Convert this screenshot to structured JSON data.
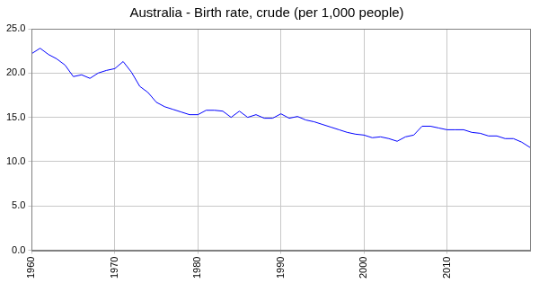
{
  "chart_data": {
    "type": "line",
    "title": "Australia - Birth rate, crude (per 1,000 people)",
    "x": [
      1960,
      1961,
      1962,
      1963,
      1964,
      1965,
      1966,
      1967,
      1968,
      1969,
      1970,
      1971,
      1972,
      1973,
      1974,
      1975,
      1976,
      1977,
      1978,
      1979,
      1980,
      1981,
      1982,
      1983,
      1984,
      1985,
      1986,
      1987,
      1988,
      1989,
      1990,
      1991,
      1992,
      1993,
      1994,
      1995,
      1996,
      1997,
      1998,
      1999,
      2000,
      2001,
      2002,
      2003,
      2004,
      2005,
      2006,
      2007,
      2008,
      2009,
      2010,
      2011,
      2012,
      2013,
      2014,
      2015,
      2016,
      2017,
      2018,
      2019,
      2020
    ],
    "values": [
      22.2,
      22.8,
      22.1,
      21.6,
      20.9,
      19.6,
      19.8,
      19.4,
      20.0,
      20.3,
      20.5,
      21.3,
      20.1,
      18.5,
      17.8,
      16.7,
      16.2,
      15.9,
      15.6,
      15.3,
      15.3,
      15.8,
      15.8,
      15.7,
      15.0,
      15.7,
      15.0,
      15.3,
      14.9,
      14.9,
      15.4,
      14.9,
      15.1,
      14.7,
      14.5,
      14.2,
      13.9,
      13.6,
      13.3,
      13.1,
      13.0,
      12.7,
      12.8,
      12.6,
      12.3,
      12.8,
      13.0,
      14.0,
      14.0,
      13.8,
      13.6,
      13.6,
      13.6,
      13.3,
      13.2,
      12.9,
      12.9,
      12.6,
      12.6,
      12.2,
      11.6
    ],
    "color": "#0000ff",
    "xlim": [
      1960,
      2020
    ],
    "xticks": [
      1960,
      1970,
      1980,
      1990,
      2000,
      2010
    ],
    "ylim": [
      0,
      25
    ],
    "yticks": [
      {
        "value": 0,
        "label": "0.0"
      },
      {
        "value": 5,
        "label": "5.0"
      },
      {
        "value": 10,
        "label": "10.0"
      },
      {
        "value": 15,
        "label": "15.0"
      },
      {
        "value": 20,
        "label": "20.0"
      },
      {
        "value": 25,
        "label": "25.0"
      }
    ],
    "grid": true
  }
}
